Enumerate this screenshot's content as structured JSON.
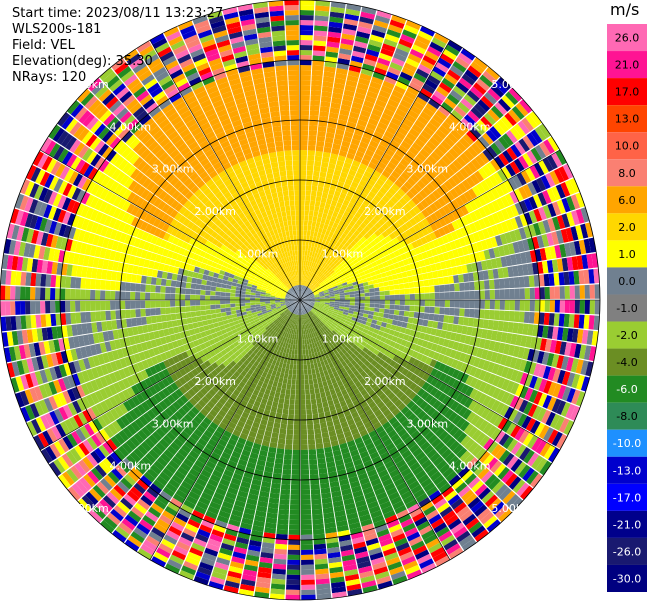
{
  "info": {
    "start_time": "Start time: 2023/08/11 13:23:27",
    "station": "WLS200s-181",
    "field": "Field: VEL",
    "elevation": "Elevation(deg): 35.30",
    "nrays": "NRays: 120"
  },
  "chart_data": {
    "type": "heatmap",
    "projection": "polar-ppi",
    "n_rays": 120,
    "range_rings_km": [
      1.0,
      2.0,
      3.0,
      4.0,
      5.0
    ],
    "max_range_km": 5.0,
    "ring_labels": [
      "1.00km",
      "2.00km",
      "3.00km",
      "4.00km",
      "5.00km"
    ],
    "colorbar": {
      "unit": "m/s",
      "ticks": [
        "26.0",
        "21.0",
        "17.0",
        "13.0",
        "10.0",
        "8.0",
        "6.0",
        "2.0",
        "1.0",
        "0.0",
        "-1.0",
        "-2.0",
        "-4.0",
        "-6.0",
        "-8.0",
        "-10.0",
        "-13.0",
        "-17.0",
        "-21.0",
        "-26.0",
        "-30.0"
      ],
      "colors": [
        "#ff69b4",
        "#ff1493",
        "#ff0000",
        "#ff4500",
        "#ff6347",
        "#fa8072",
        "#ffa500",
        "#ffd700",
        "#ffff00",
        "#708090",
        "#808080",
        "#9acd32",
        "#6b8e23",
        "#228b22",
        "#2e8b57",
        "#1e90ff",
        "#0000cd",
        "#0000ff",
        "#00008b",
        "#191970",
        "#000080"
      ]
    },
    "pattern": "velocity dipole: positive (toward N / upper) yellow-orange, negative (toward S / lower) green, near-zero grey band along west-east axis, noisy multi-colored outer gates beyond ~4 km"
  }
}
